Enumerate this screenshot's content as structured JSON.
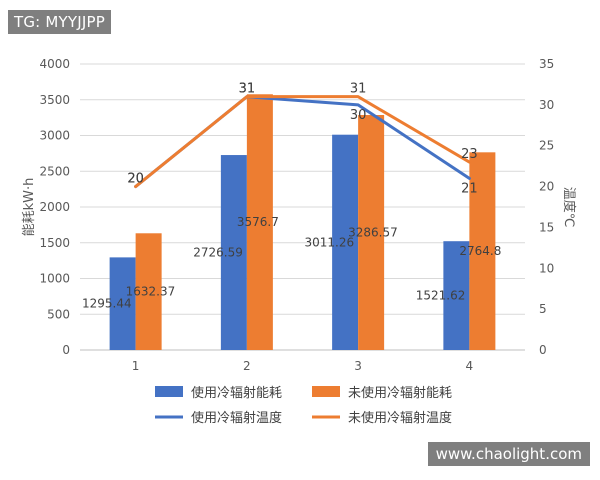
{
  "watermarks": {
    "top_left": "TG: MYYJJPP",
    "bottom_right": "www.chaolight.com"
  },
  "chart_data": {
    "type": "bar",
    "categories": [
      "1",
      "2",
      "3",
      "4"
    ],
    "ylabel": "能耗kW·h",
    "y2label": "温度℃",
    "ylim": [
      0,
      4000
    ],
    "y2lim": [
      0,
      35
    ],
    "yticks": [
      "0",
      "500",
      "1000",
      "1500",
      "2000",
      "2500",
      "3000",
      "3500",
      "4000"
    ],
    "y2ticks": [
      "0",
      "5",
      "10",
      "15",
      "20",
      "25",
      "30",
      "35"
    ],
    "grid": true,
    "legend_position": "bottom",
    "bar_series": [
      {
        "name": "使用冷辐射能耗",
        "color": "#4472C4",
        "values": [
          1295.44,
          2726.59,
          3011.26,
          1521.62
        ],
        "labels": [
          "1295.44",
          "2726.59",
          "3011.26",
          "1521.62"
        ]
      },
      {
        "name": "未使用冷辐射能耗",
        "color": "#ED7D31",
        "values": [
          1632.37,
          3576.7,
          3286.57,
          2764.8
        ],
        "labels": [
          "1632.37",
          "3576.7",
          "3286.57",
          "2764.8"
        ]
      }
    ],
    "line_series": [
      {
        "name": "使用冷辐射温度",
        "color": "#4472C4",
        "values": [
          20,
          31,
          30,
          21
        ],
        "labels": [
          "20",
          "31",
          "30",
          "21"
        ]
      },
      {
        "name": "未使用冷辐射温度",
        "color": "#ED7D31",
        "values": [
          20,
          31,
          31,
          23
        ],
        "labels": [
          "20",
          "31",
          "31",
          "23"
        ]
      }
    ]
  }
}
